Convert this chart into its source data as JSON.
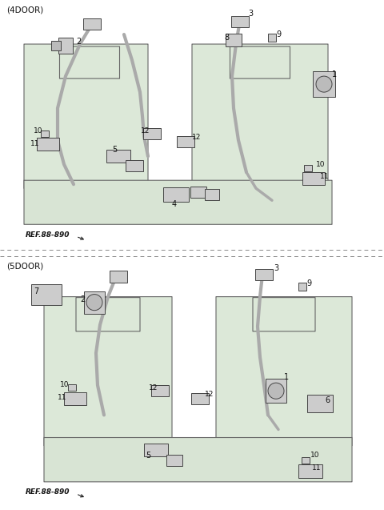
{
  "title_4door": "(4DOOR)",
  "title_5door": "(5DOOR)",
  "ref_text": "REF.88-890",
  "bg_color": "#ffffff",
  "seat_fill": "#dce8d8",
  "seat_edge": "#666666",
  "belt_color": "#999999",
  "component_fill": "#cccccc",
  "component_edge": "#444444",
  "label_color": "#111111",
  "divider_color": "#888888"
}
